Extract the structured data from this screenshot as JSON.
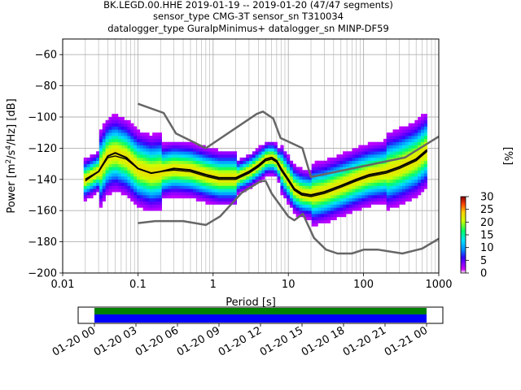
{
  "title_lines": [
    "BK.LEGD.00.HHE   2019-01-19 -- 2019-01-20  (47/47 segments)",
    "sensor_type CMG-3T sensor_sn T310034",
    "datalogger_type GuralpMinimus+ datalogger_sn MINP-DF59"
  ],
  "chart_data": [
    {
      "type": "heatmap",
      "subtype": "probabilistic-power-spectral-density",
      "xlabel": "Period [s]",
      "ylabel": "Power [m²/s⁴/Hz] [dB]",
      "x_scale": "log",
      "xlim": [
        0.01,
        1000
      ],
      "ylim": [
        -200,
        -50
      ],
      "x_tick_labels": [
        "0.01",
        "0.1",
        "1",
        "10",
        "100",
        "1000"
      ],
      "y_ticks": [
        -60,
        -80,
        -100,
        -120,
        -140,
        -160,
        -180,
        -200
      ],
      "y_tick_labels": [
        "−60",
        "−80",
        "−100",
        "−120",
        "−140",
        "−160",
        "−180",
        "−200"
      ],
      "grid": true,
      "mode_curve": {
        "period": [
          0.02,
          0.03,
          0.04,
          0.05,
          0.07,
          0.1,
          0.15,
          0.2,
          0.3,
          0.5,
          0.8,
          1.2,
          2,
          3,
          4,
          5,
          6,
          7,
          8,
          10,
          12,
          15,
          20,
          30,
          50,
          80,
          120,
          200,
          300,
          500,
          700
        ],
        "power": [
          -140,
          -135,
          -125,
          -123,
          -126,
          -133,
          -136,
          -135,
          -133,
          -134,
          -137,
          -139,
          -139,
          -135,
          -131,
          -127,
          -126,
          -128,
          -133,
          -140,
          -146,
          -149,
          -150,
          -148,
          -144,
          -140,
          -137,
          -135,
          -132,
          -127,
          -121
        ]
      },
      "mean_curve": {
        "period": [
          0.02,
          0.03,
          0.04,
          0.05,
          0.07,
          0.1,
          0.15,
          0.2,
          0.3,
          0.5,
          0.8,
          1.2,
          2,
          3,
          4,
          5,
          6,
          7,
          8,
          10,
          12,
          15,
          20,
          30,
          50,
          80,
          120,
          200,
          300,
          500,
          700
        ],
        "power": [
          -141,
          -135,
          -126,
          -125,
          -127,
          -133,
          -136,
          -135,
          -134,
          -135,
          -138,
          -140,
          -140,
          -136,
          -132,
          -128,
          -127,
          -129,
          -134,
          -141,
          -147,
          -150,
          -151,
          -149,
          -145,
          -141,
          -138,
          -136,
          -133,
          -128,
          -122
        ]
      },
      "nhnm": {
        "period": [
          0.1,
          0.22,
          0.32,
          0.8,
          3.8,
          4.6,
          6.3,
          7.9,
          15.4,
          20,
          354.8,
          1000
        ],
        "power": [
          -91.5,
          -97.4,
          -110.5,
          -120,
          -98,
          -96.5,
          -101,
          -113.5,
          -120,
          -138.5,
          -126,
          -112.5
        ]
      },
      "nlnm": {
        "period": [
          0.1,
          0.17,
          0.4,
          0.8,
          1.24,
          2.4,
          4.3,
          5,
          6,
          10,
          12,
          15.6,
          21.9,
          31.6,
          45,
          70,
          101,
          154,
          328,
          600,
          1000
        ],
        "power": [
          -168,
          -166.7,
          -166.7,
          -169.2,
          -163.7,
          -148.6,
          -141.1,
          -141.1,
          -149,
          -163.8,
          -166.2,
          -162.1,
          -177.5,
          -185,
          -187.5,
          -187.5,
          -185,
          -185,
          -187.5,
          -184.4,
          -178
        ]
      },
      "colorbar": {
        "label": "[%]",
        "range": [
          0,
          30
        ],
        "tick_labels": [
          "0",
          "5",
          "10",
          "15",
          "20",
          "25",
          "30"
        ]
      }
    },
    {
      "type": "timeline",
      "description_of_axis": "data coverage",
      "x_tick_labels": [
        "01-20 00",
        "01-20 03",
        "01-20 06",
        "01-20 09",
        "01-20 12",
        "01-20 15",
        "01-20 18",
        "01-20 21",
        "01-21 00"
      ],
      "coverage_start_fraction": 0.0,
      "coverage_end_fraction": 1.0,
      "colors": {
        "coverage": "#008000",
        "processed": "#0000ff"
      }
    }
  ],
  "colors": {
    "model_curves": "#666666",
    "mode_curve": "#000000",
    "mean_curve": "#000000"
  }
}
